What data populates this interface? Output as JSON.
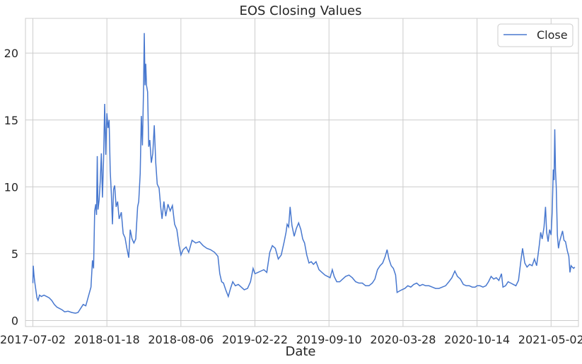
{
  "chart_data": {
    "type": "line",
    "title": "EOS Closing Values",
    "xlabel": "Date",
    "ylabel": "",
    "x_tick_labels": [
      "2017-07-02",
      "2018-01-18",
      "2018-08-06",
      "2019-02-22",
      "2019-09-10",
      "2020-03-28",
      "2020-10-14",
      "2021-05-02"
    ],
    "y_tick_labels": [
      "0",
      "5",
      "10",
      "15",
      "20"
    ],
    "xlim": [
      "2017-06-12",
      "2021-07-15"
    ],
    "ylim": [
      -0.45,
      22.6
    ],
    "grid": true,
    "legend_position": "top-right",
    "series": [
      {
        "name": "Close",
        "color": "#4878cf",
        "points": [
          [
            "2017-07-02",
            2.8
          ],
          [
            "2017-07-03",
            4.1
          ],
          [
            "2017-07-05",
            3.4
          ],
          [
            "2017-07-07",
            2.9
          ],
          [
            "2017-07-10",
            2.3
          ],
          [
            "2017-07-13",
            1.7
          ],
          [
            "2017-07-16",
            1.5
          ],
          [
            "2017-07-20",
            1.9
          ],
          [
            "2017-07-25",
            1.8
          ],
          [
            "2017-08-01",
            1.9
          ],
          [
            "2017-08-08",
            1.8
          ],
          [
            "2017-08-15",
            1.7
          ],
          [
            "2017-08-22",
            1.5
          ],
          [
            "2017-08-29",
            1.2
          ],
          [
            "2017-09-05",
            1.0
          ],
          [
            "2017-09-12",
            0.9
          ],
          [
            "2017-09-19",
            0.8
          ],
          [
            "2017-09-26",
            0.65
          ],
          [
            "2017-10-05",
            0.7
          ],
          [
            "2017-10-15",
            0.6
          ],
          [
            "2017-10-25",
            0.55
          ],
          [
            "2017-11-01",
            0.6
          ],
          [
            "2017-11-08",
            0.9
          ],
          [
            "2017-11-15",
            1.2
          ],
          [
            "2017-11-22",
            1.1
          ],
          [
            "2017-11-29",
            1.8
          ],
          [
            "2017-12-06",
            2.5
          ],
          [
            "2017-12-10",
            4.5
          ],
          [
            "2017-12-13",
            3.9
          ],
          [
            "2017-12-16",
            8.2
          ],
          [
            "2017-12-19",
            8.7
          ],
          [
            "2017-12-21",
            7.9
          ],
          [
            "2017-12-23",
            12.3
          ],
          [
            "2017-12-25",
            8.3
          ],
          [
            "2017-12-28",
            9.0
          ],
          [
            "2017-12-31",
            10.4
          ],
          [
            "2018-01-03",
            12.5
          ],
          [
            "2018-01-06",
            9.2
          ],
          [
            "2018-01-09",
            12.0
          ],
          [
            "2018-01-12",
            16.2
          ],
          [
            "2018-01-15",
            12.4
          ],
          [
            "2018-01-18",
            15.5
          ],
          [
            "2018-01-21",
            14.4
          ],
          [
            "2018-01-24",
            15.0
          ],
          [
            "2018-01-27",
            11.2
          ],
          [
            "2018-01-30",
            9.5
          ],
          [
            "2018-02-02",
            7.2
          ],
          [
            "2018-02-05",
            9.8
          ],
          [
            "2018-02-08",
            10.1
          ],
          [
            "2018-02-12",
            8.5
          ],
          [
            "2018-02-16",
            8.9
          ],
          [
            "2018-02-20",
            7.6
          ],
          [
            "2018-02-26",
            8.1
          ],
          [
            "2018-03-03",
            6.5
          ],
          [
            "2018-03-08",
            6.2
          ],
          [
            "2018-03-13",
            5.4
          ],
          [
            "2018-03-18",
            4.7
          ],
          [
            "2018-03-22",
            6.8
          ],
          [
            "2018-03-27",
            6.1
          ],
          [
            "2018-04-01",
            5.8
          ],
          [
            "2018-04-06",
            6.1
          ],
          [
            "2018-04-11",
            8.5
          ],
          [
            "2018-04-14",
            8.9
          ],
          [
            "2018-04-18",
            11.0
          ],
          [
            "2018-04-21",
            15.3
          ],
          [
            "2018-04-24",
            13.1
          ],
          [
            "2018-04-27",
            17.3
          ],
          [
            "2018-04-29",
            21.5
          ],
          [
            "2018-05-01",
            17.6
          ],
          [
            "2018-05-03",
            19.2
          ],
          [
            "2018-05-05",
            17.6
          ],
          [
            "2018-05-08",
            17.1
          ],
          [
            "2018-05-11",
            13.0
          ],
          [
            "2018-05-14",
            13.5
          ],
          [
            "2018-05-18",
            11.8
          ],
          [
            "2018-05-22",
            12.5
          ],
          [
            "2018-05-26",
            14.6
          ],
          [
            "2018-05-30",
            11.8
          ],
          [
            "2018-06-03",
            10.2
          ],
          [
            "2018-06-08",
            9.9
          ],
          [
            "2018-06-12",
            8.6
          ],
          [
            "2018-06-16",
            7.6
          ],
          [
            "2018-06-21",
            8.9
          ],
          [
            "2018-06-26",
            7.8
          ],
          [
            "2018-07-02",
            8.7
          ],
          [
            "2018-07-08",
            8.2
          ],
          [
            "2018-07-14",
            8.6
          ],
          [
            "2018-07-20",
            7.2
          ],
          [
            "2018-07-26",
            6.8
          ],
          [
            "2018-08-01",
            5.6
          ],
          [
            "2018-08-06",
            4.9
          ],
          [
            "2018-08-12",
            5.3
          ],
          [
            "2018-08-20",
            5.5
          ],
          [
            "2018-08-27",
            5.1
          ],
          [
            "2018-09-05",
            6.0
          ],
          [
            "2018-09-15",
            5.8
          ],
          [
            "2018-09-25",
            5.9
          ],
          [
            "2018-10-05",
            5.6
          ],
          [
            "2018-10-15",
            5.4
          ],
          [
            "2018-10-25",
            5.3
          ],
          [
            "2018-11-05",
            5.1
          ],
          [
            "2018-11-14",
            4.8
          ],
          [
            "2018-11-19",
            3.5
          ],
          [
            "2018-11-24",
            2.9
          ],
          [
            "2018-11-29",
            2.8
          ],
          [
            "2018-12-05",
            2.3
          ],
          [
            "2018-12-12",
            1.8
          ],
          [
            "2018-12-18",
            2.4
          ],
          [
            "2018-12-24",
            2.9
          ],
          [
            "2018-12-31",
            2.6
          ],
          [
            "2019-01-08",
            2.7
          ],
          [
            "2019-01-16",
            2.5
          ],
          [
            "2019-01-24",
            2.3
          ],
          [
            "2019-02-02",
            2.4
          ],
          [
            "2019-02-10",
            2.9
          ],
          [
            "2019-02-17",
            3.9
          ],
          [
            "2019-02-22",
            3.5
          ],
          [
            "2019-03-02",
            3.6
          ],
          [
            "2019-03-10",
            3.7
          ],
          [
            "2019-03-18",
            3.8
          ],
          [
            "2019-03-26",
            3.6
          ],
          [
            "2019-04-03",
            5.1
          ],
          [
            "2019-04-10",
            5.6
          ],
          [
            "2019-04-18",
            5.4
          ],
          [
            "2019-04-26",
            4.6
          ],
          [
            "2019-05-04",
            4.9
          ],
          [
            "2019-05-12",
            5.9
          ],
          [
            "2019-05-17",
            6.6
          ],
          [
            "2019-05-20",
            7.2
          ],
          [
            "2019-05-24",
            7.0
          ],
          [
            "2019-05-28",
            8.5
          ],
          [
            "2019-06-02",
            7.1
          ],
          [
            "2019-06-08",
            6.3
          ],
          [
            "2019-06-14",
            6.9
          ],
          [
            "2019-06-20",
            7.3
          ],
          [
            "2019-06-26",
            6.8
          ],
          [
            "2019-07-01",
            6.1
          ],
          [
            "2019-07-06",
            5.8
          ],
          [
            "2019-07-12",
            4.9
          ],
          [
            "2019-07-18",
            4.3
          ],
          [
            "2019-07-24",
            4.4
          ],
          [
            "2019-07-30",
            4.2
          ],
          [
            "2019-08-06",
            4.4
          ],
          [
            "2019-08-14",
            3.8
          ],
          [
            "2019-08-22",
            3.6
          ],
          [
            "2019-08-30",
            3.4
          ],
          [
            "2019-09-06",
            3.3
          ],
          [
            "2019-09-13",
            3.2
          ],
          [
            "2019-09-19",
            3.8
          ],
          [
            "2019-09-24",
            3.3
          ],
          [
            "2019-10-01",
            2.9
          ],
          [
            "2019-10-09",
            2.9
          ],
          [
            "2019-10-17",
            3.1
          ],
          [
            "2019-10-25",
            3.3
          ],
          [
            "2019-11-03",
            3.4
          ],
          [
            "2019-11-12",
            3.2
          ],
          [
            "2019-11-21",
            2.9
          ],
          [
            "2019-11-30",
            2.8
          ],
          [
            "2019-12-09",
            2.8
          ],
          [
            "2019-12-18",
            2.6
          ],
          [
            "2019-12-27",
            2.6
          ],
          [
            "2020-01-05",
            2.8
          ],
          [
            "2020-01-12",
            3.1
          ],
          [
            "2020-01-19",
            3.8
          ],
          [
            "2020-01-26",
            4.1
          ],
          [
            "2020-02-02",
            4.3
          ],
          [
            "2020-02-09",
            4.8
          ],
          [
            "2020-02-14",
            5.3
          ],
          [
            "2020-02-19",
            4.6
          ],
          [
            "2020-02-25",
            4.1
          ],
          [
            "2020-03-02",
            3.9
          ],
          [
            "2020-03-08",
            3.4
          ],
          [
            "2020-03-12",
            2.1
          ],
          [
            "2020-03-18",
            2.2
          ],
          [
            "2020-03-25",
            2.3
          ],
          [
            "2020-04-02",
            2.4
          ],
          [
            "2020-04-10",
            2.6
          ],
          [
            "2020-04-18",
            2.5
          ],
          [
            "2020-04-26",
            2.7
          ],
          [
            "2020-05-04",
            2.8
          ],
          [
            "2020-05-12",
            2.6
          ],
          [
            "2020-05-20",
            2.7
          ],
          [
            "2020-05-28",
            2.6
          ],
          [
            "2020-06-06",
            2.6
          ],
          [
            "2020-06-15",
            2.5
          ],
          [
            "2020-06-24",
            2.4
          ],
          [
            "2020-07-03",
            2.4
          ],
          [
            "2020-07-12",
            2.5
          ],
          [
            "2020-07-21",
            2.6
          ],
          [
            "2020-07-30",
            2.9
          ],
          [
            "2020-08-07",
            3.2
          ],
          [
            "2020-08-15",
            3.7
          ],
          [
            "2020-08-22",
            3.3
          ],
          [
            "2020-08-30",
            3.1
          ],
          [
            "2020-09-07",
            2.7
          ],
          [
            "2020-09-15",
            2.6
          ],
          [
            "2020-09-23",
            2.6
          ],
          [
            "2020-10-01",
            2.5
          ],
          [
            "2020-10-09",
            2.5
          ],
          [
            "2020-10-14",
            2.6
          ],
          [
            "2020-10-22",
            2.6
          ],
          [
            "2020-10-30",
            2.5
          ],
          [
            "2020-11-07",
            2.6
          ],
          [
            "2020-11-14",
            2.9
          ],
          [
            "2020-11-21",
            3.3
          ],
          [
            "2020-11-28",
            3.1
          ],
          [
            "2020-12-05",
            3.2
          ],
          [
            "2020-12-12",
            3.0
          ],
          [
            "2020-12-19",
            3.5
          ],
          [
            "2020-12-23",
            2.5
          ],
          [
            "2020-12-30",
            2.6
          ],
          [
            "2021-01-06",
            2.9
          ],
          [
            "2021-01-13",
            2.8
          ],
          [
            "2021-01-20",
            2.7
          ],
          [
            "2021-01-27",
            2.6
          ],
          [
            "2021-02-03",
            3.0
          ],
          [
            "2021-02-10",
            4.6
          ],
          [
            "2021-02-14",
            5.4
          ],
          [
            "2021-02-20",
            4.3
          ],
          [
            "2021-02-26",
            4.0
          ],
          [
            "2021-03-05",
            4.2
          ],
          [
            "2021-03-12",
            4.1
          ],
          [
            "2021-03-18",
            4.6
          ],
          [
            "2021-03-24",
            4.1
          ],
          [
            "2021-03-31",
            5.6
          ],
          [
            "2021-04-04",
            6.6
          ],
          [
            "2021-04-08",
            6.1
          ],
          [
            "2021-04-13",
            7.0
          ],
          [
            "2021-04-17",
            8.5
          ],
          [
            "2021-04-20",
            6.6
          ],
          [
            "2021-04-24",
            5.9
          ],
          [
            "2021-04-28",
            6.8
          ],
          [
            "2021-05-02",
            6.4
          ],
          [
            "2021-05-05",
            8.1
          ],
          [
            "2021-05-08",
            11.3
          ],
          [
            "2021-05-10",
            10.5
          ],
          [
            "2021-05-12",
            14.3
          ],
          [
            "2021-05-14",
            11.2
          ],
          [
            "2021-05-16",
            10.0
          ],
          [
            "2021-05-19",
            6.4
          ],
          [
            "2021-05-22",
            5.4
          ],
          [
            "2021-05-25",
            5.9
          ],
          [
            "2021-05-28",
            6.2
          ],
          [
            "2021-06-02",
            6.7
          ],
          [
            "2021-06-06",
            6.0
          ],
          [
            "2021-06-10",
            5.9
          ],
          [
            "2021-06-15",
            5.2
          ],
          [
            "2021-06-19",
            4.8
          ],
          [
            "2021-06-22",
            3.6
          ],
          [
            "2021-06-25",
            4.1
          ],
          [
            "2021-06-28",
            4.0
          ],
          [
            "2021-07-02",
            3.9
          ],
          [
            "2021-07-05",
            4.0
          ]
        ]
      }
    ]
  }
}
